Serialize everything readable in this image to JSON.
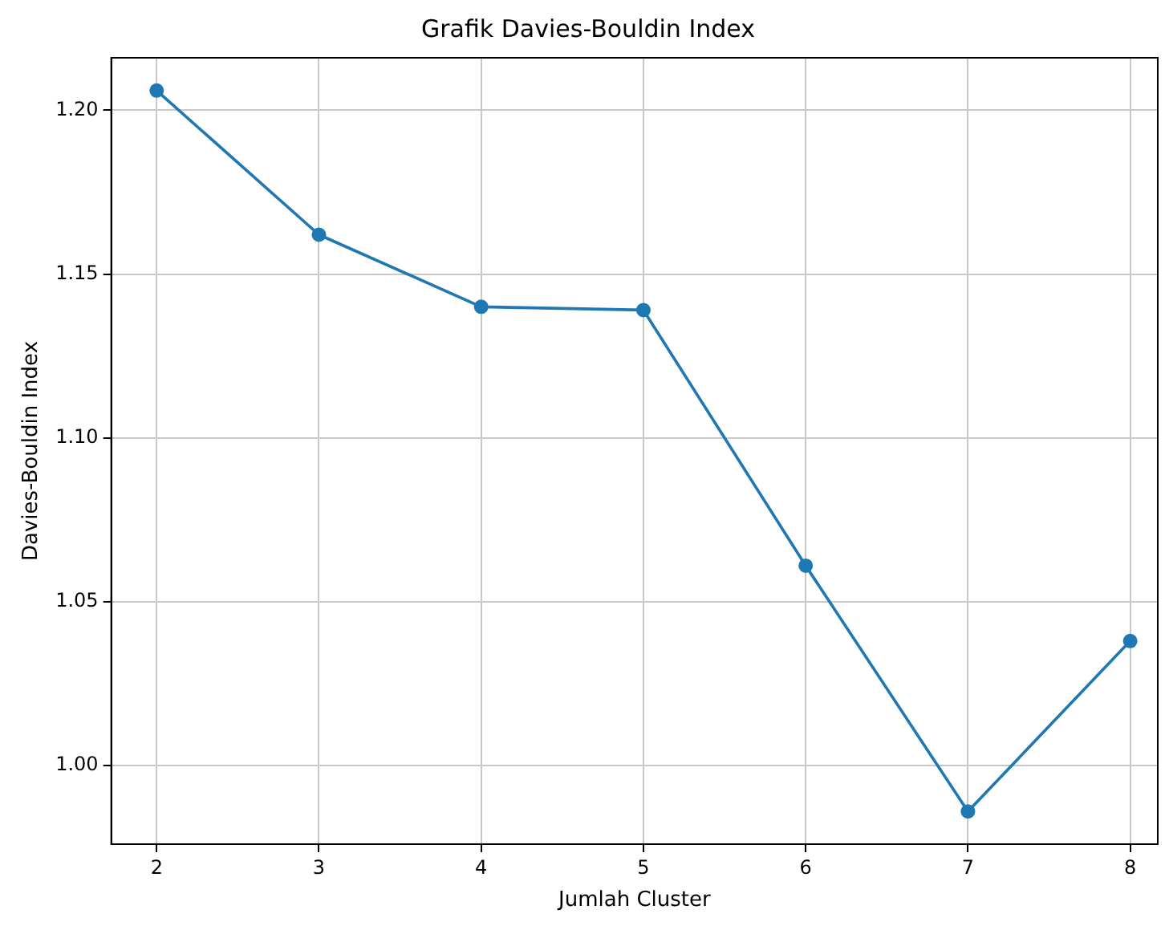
{
  "chart_data": {
    "type": "line",
    "title": "Grafik Davies-Bouldin Index",
    "xlabel": "Jumlah Cluster",
    "ylabel": "Davies-Bouldin Index",
    "x": [
      2,
      3,
      4,
      5,
      6,
      7,
      8
    ],
    "series": [
      {
        "color": "#1f77b4",
        "values": [
          1.206,
          1.162,
          1.14,
          1.139,
          1.061,
          0.986,
          1.038
        ]
      }
    ],
    "xlim": [
      1.72,
      8.17
    ],
    "xticks": [
      2,
      3,
      4,
      5,
      6,
      7,
      8
    ],
    "ylim": [
      0.976,
      1.216
    ],
    "yticks": [
      {
        "value": 1.0,
        "label": "1.00"
      },
      {
        "value": 1.05,
        "label": "1.05"
      },
      {
        "value": 1.1,
        "label": "1.10"
      },
      {
        "value": 1.15,
        "label": "1.15"
      },
      {
        "value": 1.2,
        "label": "1.20"
      }
    ],
    "grid": true,
    "marker": "circle",
    "line_style": "solid",
    "legend": false
  }
}
